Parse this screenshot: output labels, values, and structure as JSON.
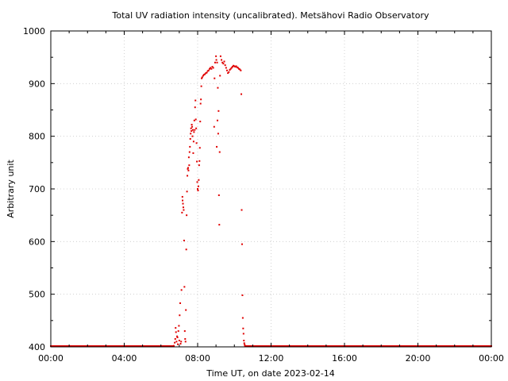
{
  "chart_data": {
    "type": "scatter",
    "title": "Total UV radiation intensity (uncalibrated). Metsähovi Radio Observatory",
    "xlabel": "Time UT, on date 2023-02-14",
    "ylabel": "Arbitrary unit",
    "xlim_hours": [
      0,
      24
    ],
    "ylim": [
      400,
      1000
    ],
    "x_tick_labels": [
      "00:00",
      "04:00",
      "08:00",
      "12:00",
      "16:00",
      "20:00",
      "00:00"
    ],
    "y_tick_labels": [
      "400",
      "500",
      "600",
      "700",
      "800",
      "900",
      "1000"
    ],
    "grid": true,
    "marker_color": "#e00000",
    "series": [
      {
        "baseline_value": 400,
        "baseline_ranges_hours": [
          [
            0,
            6.7
          ],
          [
            10.6,
            24
          ]
        ],
        "points": [
          [
            6.7,
            402
          ],
          [
            6.75,
            408
          ],
          [
            6.78,
            415
          ],
          [
            6.8,
            436
          ],
          [
            6.82,
            428
          ],
          [
            6.85,
            410
          ],
          [
            6.88,
            420
          ],
          [
            6.9,
            418
          ],
          [
            6.92,
            405
          ],
          [
            6.95,
            430
          ],
          [
            6.98,
            440
          ],
          [
            7.0,
            412
          ],
          [
            7.02,
            460
          ],
          [
            7.05,
            483
          ],
          [
            7.07,
            406
          ],
          [
            7.1,
            410
          ],
          [
            7.12,
            508
          ],
          [
            7.15,
            655
          ],
          [
            7.17,
            685
          ],
          [
            7.18,
            678
          ],
          [
            7.2,
            672
          ],
          [
            7.22,
            665
          ],
          [
            7.24,
            660
          ],
          [
            7.26,
            602
          ],
          [
            7.28,
            514
          ],
          [
            7.3,
            430
          ],
          [
            7.32,
            415
          ],
          [
            7.34,
            410
          ],
          [
            7.36,
            470
          ],
          [
            7.38,
            585
          ],
          [
            7.4,
            650
          ],
          [
            7.42,
            695
          ],
          [
            7.44,
            725
          ],
          [
            7.46,
            738
          ],
          [
            7.48,
            740
          ],
          [
            7.5,
            735
          ],
          [
            7.52,
            760
          ],
          [
            7.54,
            745
          ],
          [
            7.56,
            770
          ],
          [
            7.58,
            780
          ],
          [
            7.6,
            795
          ],
          [
            7.62,
            805
          ],
          [
            7.64,
            815
          ],
          [
            7.66,
            810
          ],
          [
            7.68,
            822
          ],
          [
            7.7,
            818
          ],
          [
            7.72,
            800
          ],
          [
            7.74,
            812
          ],
          [
            7.76,
            768
          ],
          [
            7.78,
            790
          ],
          [
            7.8,
            808
          ],
          [
            7.82,
            830
          ],
          [
            7.84,
            812
          ],
          [
            7.86,
            855
          ],
          [
            7.88,
            868
          ],
          [
            7.9,
            832
          ],
          [
            7.92,
            815
          ],
          [
            7.94,
            787
          ],
          [
            7.96,
            752
          ],
          [
            7.98,
            713
          ],
          [
            8.0,
            700
          ],
          [
            8.02,
            697
          ],
          [
            8.04,
            705
          ],
          [
            8.06,
            717
          ],
          [
            8.08,
            745
          ],
          [
            8.1,
            753
          ],
          [
            8.12,
            778
          ],
          [
            8.14,
            828
          ],
          [
            8.16,
            862
          ],
          [
            8.18,
            870
          ],
          [
            8.2,
            895
          ],
          [
            8.22,
            910
          ],
          [
            8.25,
            912
          ],
          [
            8.3,
            915
          ],
          [
            8.35,
            917
          ],
          [
            8.4,
            918
          ],
          [
            8.45,
            920
          ],
          [
            8.5,
            921
          ],
          [
            8.55,
            924
          ],
          [
            8.6,
            925
          ],
          [
            8.65,
            928
          ],
          [
            8.7,
            930
          ],
          [
            8.75,
            928
          ],
          [
            8.8,
            932
          ],
          [
            8.85,
            930
          ],
          [
            8.9,
            818
          ],
          [
            8.92,
            910
          ],
          [
            8.95,
            940
          ],
          [
            9.0,
            952
          ],
          [
            9.02,
            945
          ],
          [
            9.04,
            780
          ],
          [
            9.06,
            940
          ],
          [
            9.08,
            830
          ],
          [
            9.1,
            892
          ],
          [
            9.12,
            805
          ],
          [
            9.14,
            848
          ],
          [
            9.16,
            688
          ],
          [
            9.18,
            632
          ],
          [
            9.2,
            770
          ],
          [
            9.22,
            915
          ],
          [
            9.25,
            952
          ],
          [
            9.3,
            945
          ],
          [
            9.35,
            940
          ],
          [
            9.4,
            938
          ],
          [
            9.45,
            942
          ],
          [
            9.5,
            935
          ],
          [
            9.55,
            930
          ],
          [
            9.6,
            925
          ],
          [
            9.65,
            920
          ],
          [
            9.7,
            922
          ],
          [
            9.75,
            926
          ],
          [
            9.8,
            928
          ],
          [
            9.85,
            930
          ],
          [
            9.9,
            932
          ],
          [
            9.95,
            934
          ],
          [
            10.0,
            933
          ],
          [
            10.05,
            932
          ],
          [
            10.1,
            933
          ],
          [
            10.15,
            931
          ],
          [
            10.2,
            930
          ],
          [
            10.25,
            928
          ],
          [
            10.3,
            927
          ],
          [
            10.35,
            925
          ],
          [
            10.38,
            880
          ],
          [
            10.4,
            660
          ],
          [
            10.42,
            595
          ],
          [
            10.44,
            498
          ],
          [
            10.46,
            455
          ],
          [
            10.48,
            435
          ],
          [
            10.5,
            425
          ],
          [
            10.52,
            412
          ],
          [
            10.54,
            407
          ],
          [
            10.56,
            404
          ],
          [
            10.58,
            402
          ]
        ]
      }
    ]
  }
}
